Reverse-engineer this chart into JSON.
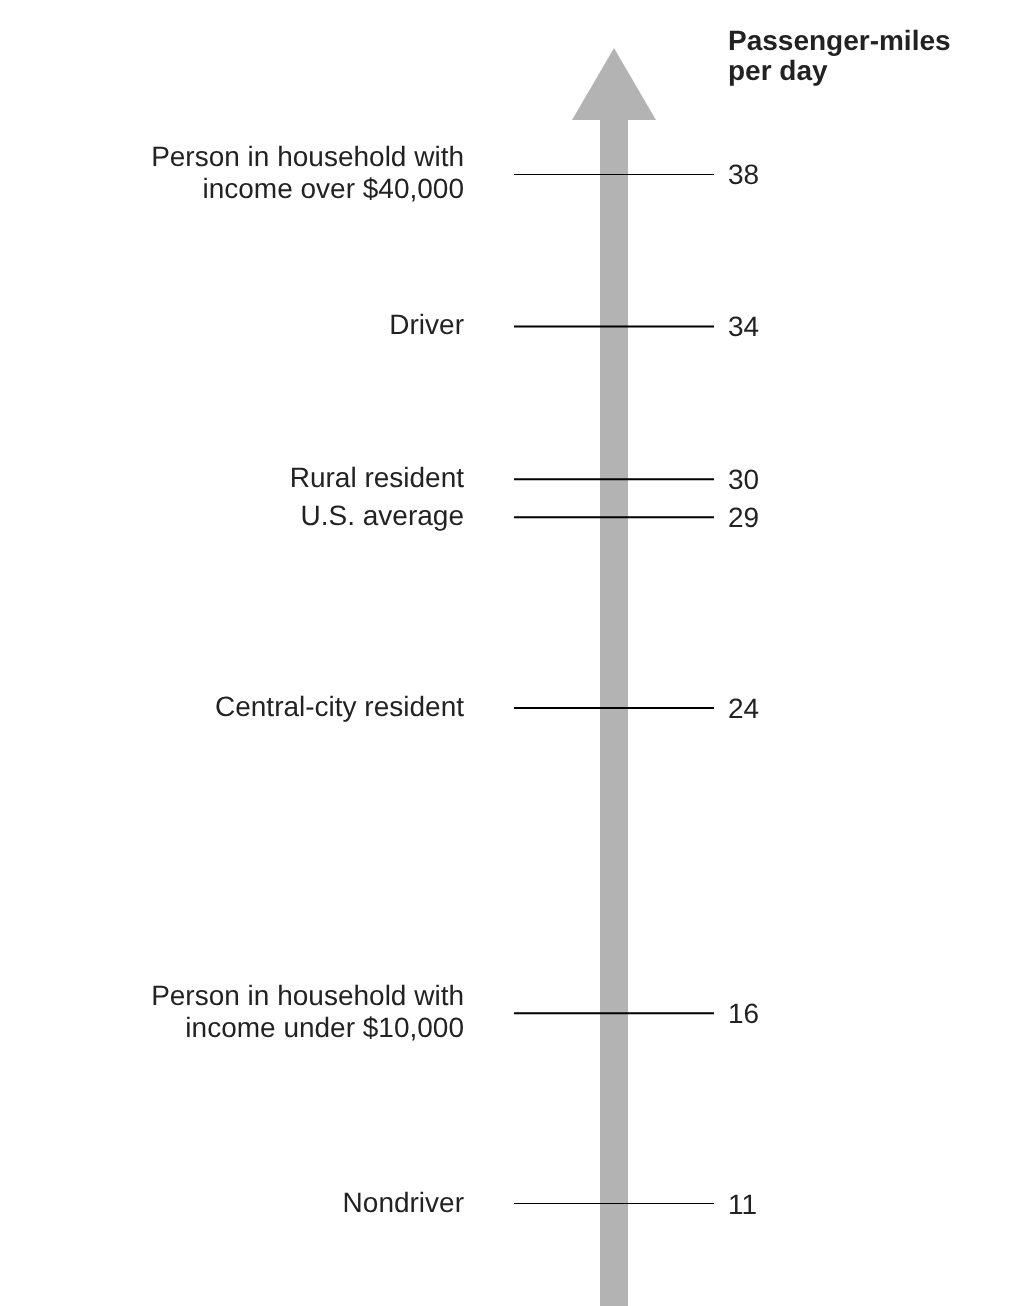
{
  "chart_data": {
    "type": "other",
    "title": "Passenger-miles per day",
    "categories": [
      "Person in household with income over $40,000",
      "Driver",
      "Rural resident",
      "U.S. average",
      "Central-city resident",
      "Person in household with income under $10,000",
      "Nondriver"
    ],
    "values": [
      38,
      34,
      30,
      29,
      24,
      16,
      11
    ],
    "color": "#b3b3b3",
    "data_labels": true
  }
}
